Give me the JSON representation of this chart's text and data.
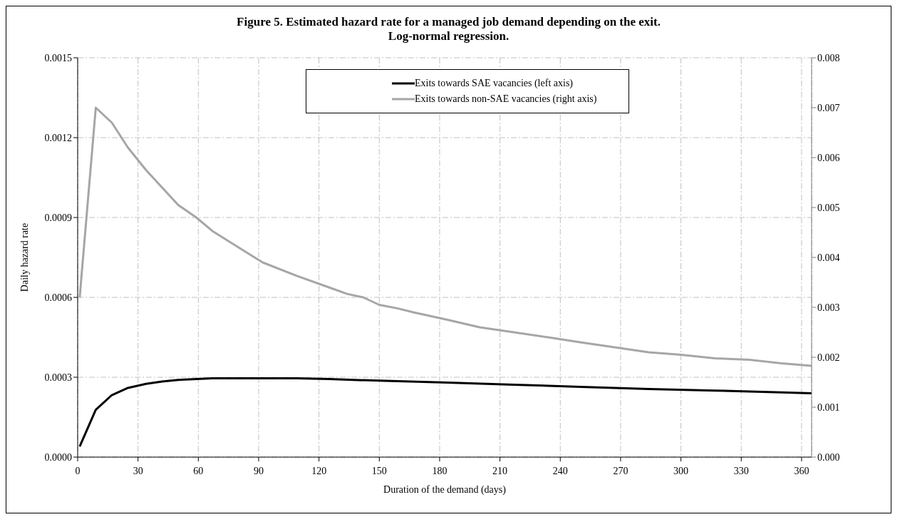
{
  "chart_data": {
    "type": "line",
    "title": "Figure 5. Estimated hazard rate for a managed job demand depending on the exit.\nLog-normal regression.",
    "xlabel": "Duration of the demand (days)",
    "ylabel": "Daily hazard rate",
    "xlim": [
      0,
      365
    ],
    "xticks": [
      0,
      30,
      60,
      90,
      120,
      150,
      180,
      210,
      240,
      270,
      300,
      330,
      360
    ],
    "ylim": [
      0,
      0.0015
    ],
    "yticks": [
      {
        "value": 0,
        "label": "0.0000"
      },
      {
        "value": 0.0003,
        "label": "0.0003"
      },
      {
        "value": 0.0006,
        "label": "0.0006"
      },
      {
        "value": 0.0009,
        "label": "0.0009"
      },
      {
        "value": 0.0012,
        "label": "0.0012"
      },
      {
        "value": 0.0015,
        "label": "0.0015"
      }
    ],
    "y2lim": [
      0,
      0.008
    ],
    "y2ticks": [
      {
        "value": 0,
        "label": "0.000"
      },
      {
        "value": 0.001,
        "label": "0.001"
      },
      {
        "value": 0.002,
        "label": "0.002"
      },
      {
        "value": 0.003,
        "label": "0.003"
      },
      {
        "value": 0.004,
        "label": "0.004"
      },
      {
        "value": 0.005,
        "label": "0.005"
      },
      {
        "value": 0.006,
        "label": "0.006"
      },
      {
        "value": 0.007,
        "label": "0.007"
      },
      {
        "value": 0.008,
        "label": "0.008"
      }
    ],
    "grid": true,
    "legend": "top",
    "marker": "none",
    "line_style": "solid",
    "series": [
      {
        "name": "Exits towards SAE vacancies (left axis)",
        "color": "#000000",
        "x": [
          1,
          9,
          17,
          25,
          34,
          42,
          50,
          67,
          109,
          125,
          150,
          184,
          217,
          250,
          284,
          317,
          350,
          365
        ],
        "values": [
          4e-05,
          0.000178,
          0.000233,
          0.00026,
          0.000275,
          0.000284,
          0.00029,
          0.000296,
          0.000296,
          0.000293,
          0.000287,
          0.00028,
          0.000272,
          0.000264,
          0.000256,
          0.00025,
          0.000243,
          0.00024
        ]
      },
      {
        "name": "Exits towards non-SAE vacancies (right axis)",
        "color": "#a6a6a6",
        "axis": "y2",
        "x": [
          1,
          9,
          17,
          25,
          34,
          42,
          50,
          59,
          67,
          84,
          92,
          109,
          125,
          134,
          142,
          150,
          159,
          167,
          184,
          200,
          217,
          234,
          250,
          267,
          284,
          300,
          317,
          334,
          350,
          365
        ],
        "values": [
          0.0032,
          0.007,
          0.0067,
          0.0062,
          0.00575,
          0.0054,
          0.00505,
          0.0048,
          0.00453,
          0.0041,
          0.0039,
          0.00363,
          0.0034,
          0.00327,
          0.0032,
          0.00305,
          0.00298,
          0.0029,
          0.00275,
          0.0026,
          0.0025,
          0.0024,
          0.0023,
          0.0022,
          0.0021,
          0.00205,
          0.00198,
          0.00195,
          0.00188,
          0.00183
        ]
      }
    ]
  }
}
